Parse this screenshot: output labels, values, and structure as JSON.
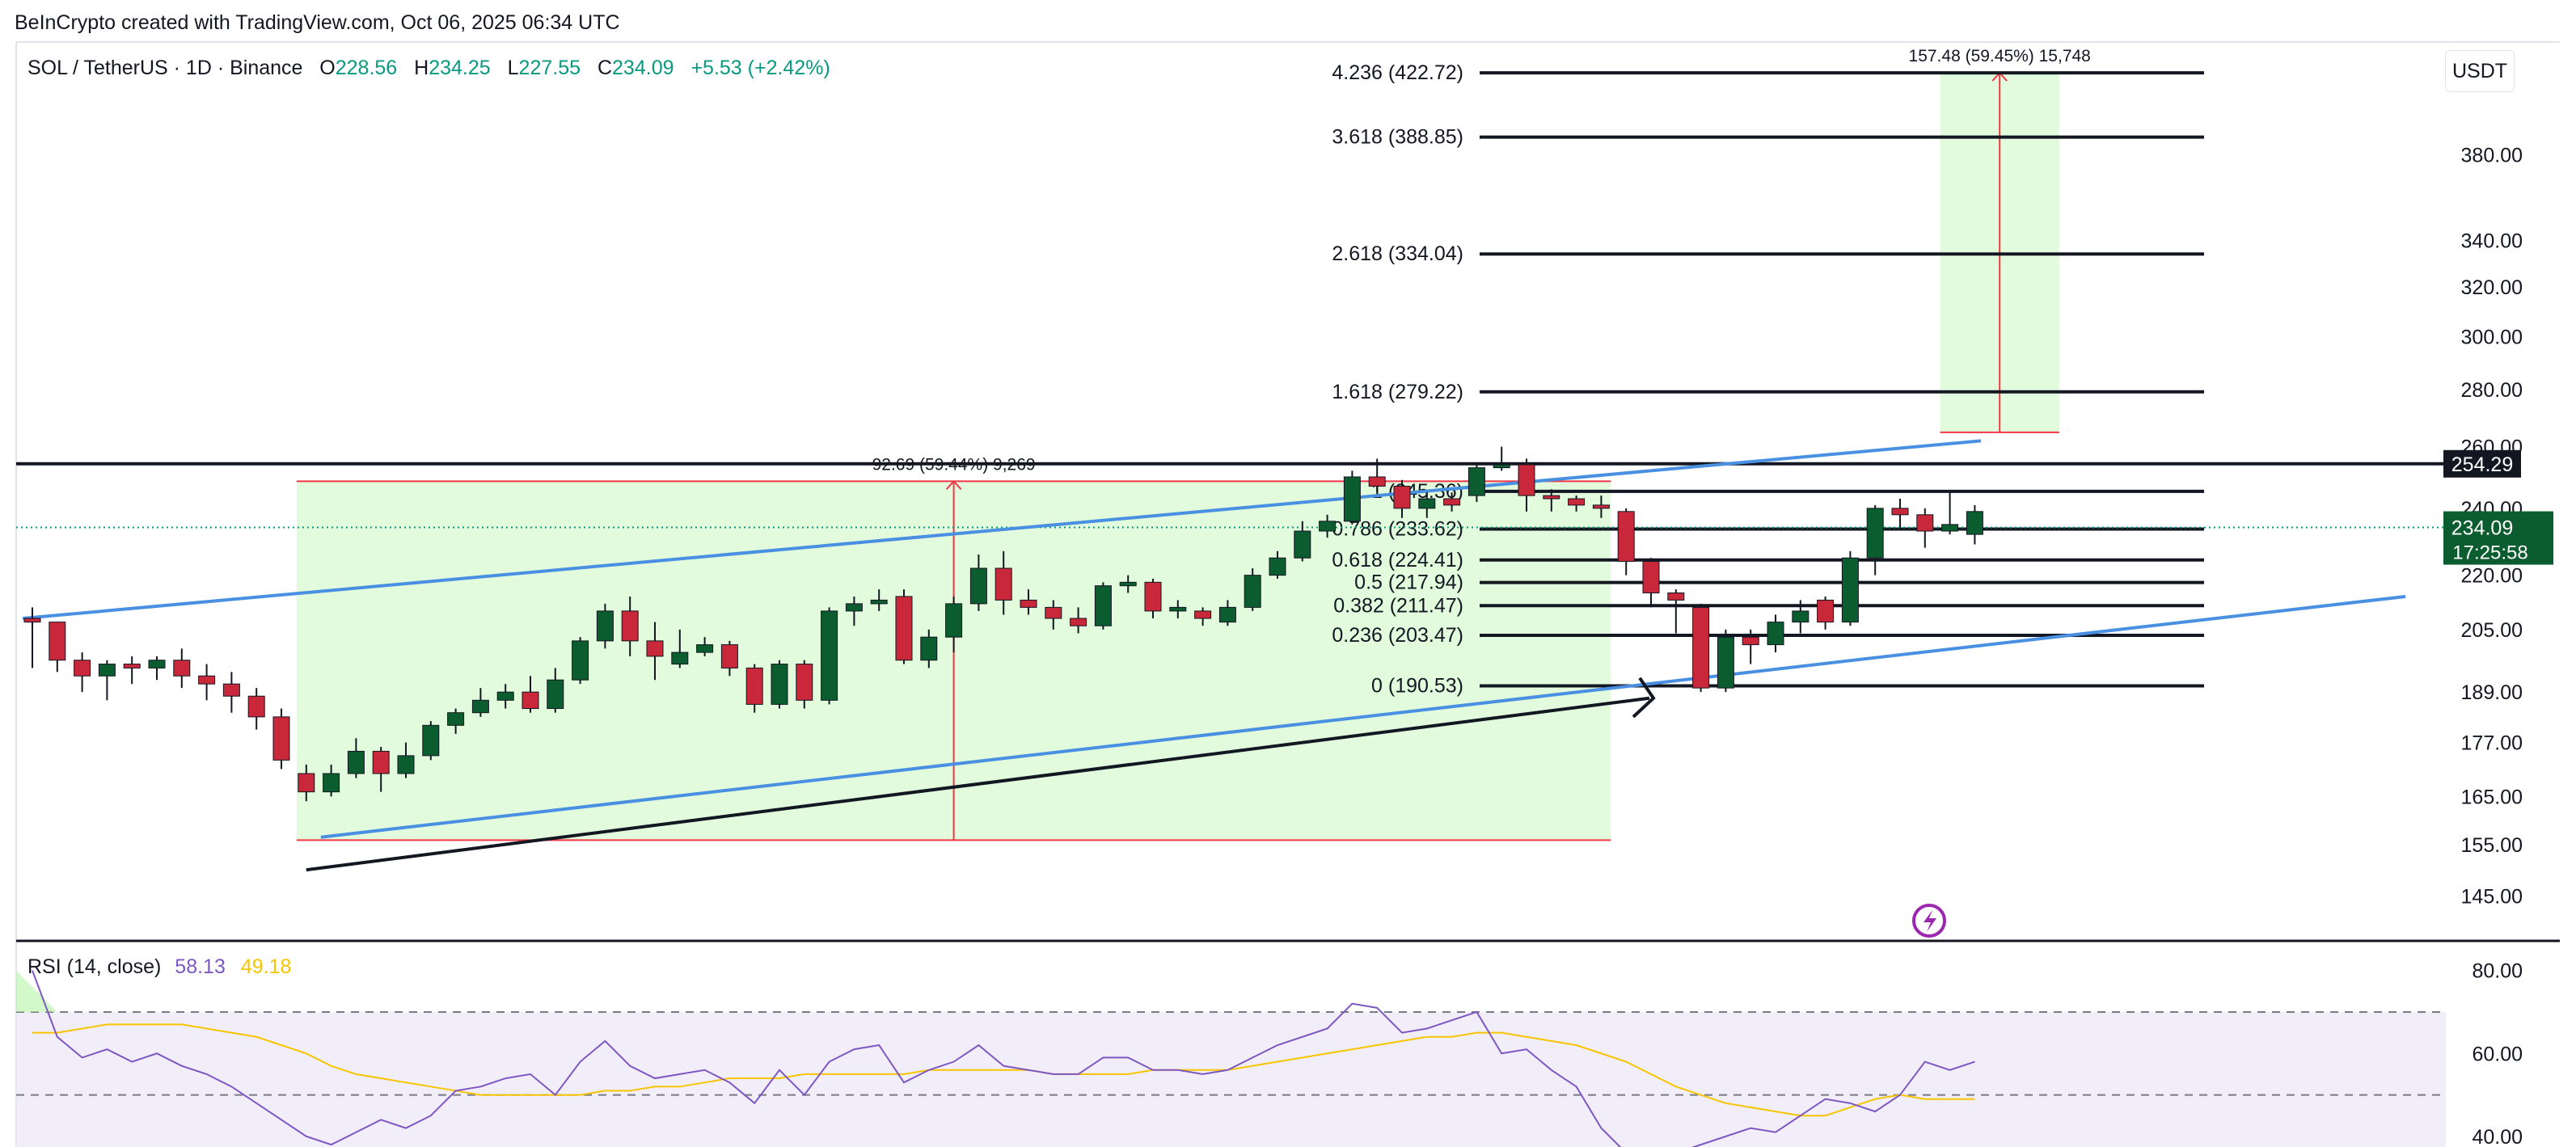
{
  "credit": "BeInCrypto created with TradingView.com, Oct 06, 2025 06:34 UTC",
  "symbol": {
    "title": "SOL / TetherUS · 1D · Binance",
    "o_label": "O",
    "o": "228.56",
    "h_label": "H",
    "h": "234.25",
    "l_label": "L",
    "l": "227.55",
    "c_label": "C",
    "c": "234.09",
    "change": "+5.53 (+2.42%)"
  },
  "currency_button": "USDT",
  "rsi_legend": {
    "label": "RSI (14, close)",
    "rsi": "58.13",
    "ma": "49.18"
  },
  "chart_data": [
    {
      "type": "candlestick",
      "y_scale": "log",
      "price_axis_ticks": [
        "380.00",
        "340.00",
        "320.00",
        "300.00",
        "280.00",
        "260.00",
        "240.00",
        "220.00",
        "205.00",
        "189.00",
        "177.00",
        "165.00",
        "155.00",
        "145.00"
      ],
      "price_axis_tick_values": [
        380,
        340,
        320,
        300,
        280,
        260,
        240,
        220,
        205,
        189,
        177,
        165,
        155,
        145
      ],
      "ylim": [
        141,
        440
      ],
      "candles": [
        [
          208,
          207,
          211,
          195
        ],
        [
          207,
          197,
          207,
          194
        ],
        [
          197,
          193,
          199,
          189
        ],
        [
          193,
          196,
          197,
          187
        ],
        [
          196,
          195,
          198,
          191
        ],
        [
          195,
          197,
          198,
          192
        ],
        [
          197,
          193,
          200,
          190
        ],
        [
          193,
          191,
          196,
          187
        ],
        [
          191,
          188,
          194,
          184
        ],
        [
          188,
          183,
          190,
          180
        ],
        [
          183,
          173,
          185,
          171
        ],
        [
          170,
          166,
          172,
          164
        ],
        [
          166,
          170,
          172,
          165
        ],
        [
          170,
          175,
          178,
          169
        ],
        [
          175,
          170,
          176,
          166
        ],
        [
          170,
          174,
          177,
          169
        ],
        [
          174,
          181,
          182,
          173
        ],
        [
          181,
          184,
          185,
          179
        ],
        [
          184,
          187,
          190,
          183
        ],
        [
          187,
          189,
          191,
          185
        ],
        [
          189,
          185,
          193,
          184
        ],
        [
          185,
          192,
          195,
          184
        ],
        [
          192,
          202,
          203,
          191
        ],
        [
          202,
          210,
          212,
          200
        ],
        [
          210,
          202,
          214,
          198
        ],
        [
          202,
          198,
          207,
          192
        ],
        [
          196,
          199,
          205,
          195
        ],
        [
          199,
          201,
          203,
          198
        ],
        [
          201,
          195,
          202,
          193
        ],
        [
          195,
          186,
          196,
          184
        ],
        [
          186,
          196,
          197,
          185
        ],
        [
          196,
          187,
          197,
          185
        ],
        [
          187,
          210,
          211,
          186
        ],
        [
          210,
          212,
          214,
          206
        ],
        [
          212,
          213,
          216,
          210
        ],
        [
          214,
          197,
          216,
          196
        ],
        [
          197,
          203,
          205,
          195
        ],
        [
          203,
          212,
          214,
          199
        ],
        [
          212,
          222,
          226,
          210
        ],
        [
          222,
          213,
          227,
          209
        ],
        [
          213,
          211,
          216,
          209
        ],
        [
          211,
          208,
          213,
          205
        ],
        [
          208,
          206,
          211,
          204
        ],
        [
          206,
          217,
          218,
          205
        ],
        [
          217,
          218,
          220,
          215
        ],
        [
          218,
          210,
          219,
          208
        ],
        [
          210,
          211,
          213,
          208
        ],
        [
          210,
          208,
          211,
          206
        ],
        [
          207,
          211,
          213,
          206
        ],
        [
          211,
          220,
          222,
          210
        ],
        [
          220,
          225,
          227,
          219
        ],
        [
          225,
          233,
          236,
          224
        ],
        [
          233,
          236,
          238,
          231
        ],
        [
          236,
          250,
          252,
          235
        ],
        [
          250,
          247,
          256,
          245
        ],
        [
          247,
          240,
          249,
          237
        ],
        [
          240,
          243,
          245,
          237
        ],
        [
          243,
          241,
          245,
          239
        ],
        [
          244,
          253,
          254,
          242
        ],
        [
          253,
          254,
          260,
          252
        ],
        [
          254,
          244,
          256,
          239
        ],
        [
          244,
          243,
          246,
          239
        ],
        [
          243,
          241,
          244,
          239
        ],
        [
          241,
          240,
          244,
          237
        ],
        [
          239,
          224,
          240,
          220
        ],
        [
          224,
          215,
          225,
          211
        ],
        [
          215,
          213,
          216,
          204
        ],
        [
          211,
          190,
          212,
          189
        ],
        [
          190,
          203,
          205,
          189
        ],
        [
          203,
          201,
          205,
          196
        ],
        [
          201,
          207,
          209,
          199
        ],
        [
          207,
          210,
          213,
          204
        ],
        [
          213,
          207,
          214,
          205
        ],
        [
          207,
          225,
          227,
          206
        ],
        [
          225,
          240,
          241,
          220
        ],
        [
          240,
          238,
          243,
          234
        ],
        [
          238,
          233,
          240,
          228
        ],
        [
          233,
          235,
          245,
          232
        ],
        [
          232,
          239,
          241,
          229
        ]
      ],
      "fib_levels": [
        {
          "ratio": "4.236",
          "price": 422.72,
          "label": "4.236 (422.72)"
        },
        {
          "ratio": "3.618",
          "price": 388.85,
          "label": "3.618 (388.85)"
        },
        {
          "ratio": "2.618",
          "price": 334.04,
          "label": "2.618 (334.04)"
        },
        {
          "ratio": "1.618",
          "price": 279.22,
          "label": "1.618 (279.22)"
        },
        {
          "ratio": "1",
          "price": 245.36,
          "label": "1 (245.36)"
        },
        {
          "ratio": "0.786",
          "price": 233.62,
          "label": "0.786 (233.62)"
        },
        {
          "ratio": "0.618",
          "price": 224.41,
          "label": "0.618 (224.41)"
        },
        {
          "ratio": "0.5",
          "price": 217.94,
          "label": "0.5 (217.94)"
        },
        {
          "ratio": "0.382",
          "price": 211.47,
          "label": "0.382 (211.47)"
        },
        {
          "ratio": "0.236",
          "price": 203.47,
          "label": "0.236 (203.47)"
        },
        {
          "ratio": "0",
          "price": 190.53,
          "label": "0 (190.53)"
        }
      ],
      "resistance": {
        "price": 254.29,
        "label": "254.29"
      },
      "current_price": {
        "price": 234.09,
        "label": "234.09",
        "countdown": "17:25:58"
      },
      "measure_boxes": [
        {
          "label": "92.69 (59.44%) 9,269",
          "from_price": 155.9,
          "to_price": 248.6,
          "start_index": 11,
          "end_index": 63
        },
        {
          "label": "157.48 (59.45%) 15,748",
          "from_price": 264.9,
          "to_price": 422.72,
          "start_index": 77,
          "end_index": 81
        }
      ]
    },
    {
      "type": "line",
      "name": "RSI (14, close)",
      "axis_ticks": [
        "80.00",
        "60.00",
        "40.00"
      ],
      "axis_tick_values": [
        80,
        60,
        40
      ],
      "band": [
        70,
        30
      ],
      "mid_line": 50,
      "ylim": [
        39,
        85
      ],
      "rsi": [
        80,
        64,
        59,
        61,
        58,
        60,
        57,
        55,
        52,
        48,
        44,
        40,
        38,
        41,
        44,
        42,
        45,
        51,
        52,
        54,
        55,
        50,
        58,
        63,
        57,
        54,
        55,
        56,
        53,
        48,
        56,
        50,
        58,
        61,
        62,
        53,
        56,
        58,
        62,
        57,
        56,
        55,
        55,
        59,
        59,
        56,
        56,
        55,
        56,
        59,
        62,
        64,
        66,
        72,
        71,
        65,
        66,
        68,
        70,
        60,
        61,
        56,
        52,
        42,
        36,
        33,
        36,
        38,
        40,
        42,
        41,
        45,
        49,
        48,
        46,
        50,
        58,
        56,
        58
      ],
      "rsi_ma": [
        65,
        65,
        66,
        67,
        67,
        67,
        67,
        66,
        65,
        64,
        62,
        60,
        57,
        55,
        54,
        53,
        52,
        51,
        50,
        50,
        50,
        50,
        50,
        51,
        51,
        52,
        52,
        53,
        54,
        54,
        54,
        55,
        55,
        55,
        55,
        55,
        56,
        56,
        56,
        56,
        56,
        55,
        55,
        55,
        55,
        56,
        56,
        56,
        56,
        57,
        58,
        59,
        60,
        61,
        62,
        63,
        64,
        64,
        65,
        65,
        64,
        63,
        62,
        60,
        58,
        55,
        52,
        50,
        48,
        47,
        46,
        45,
        45,
        47,
        49,
        50,
        49,
        49,
        49
      ]
    }
  ]
}
